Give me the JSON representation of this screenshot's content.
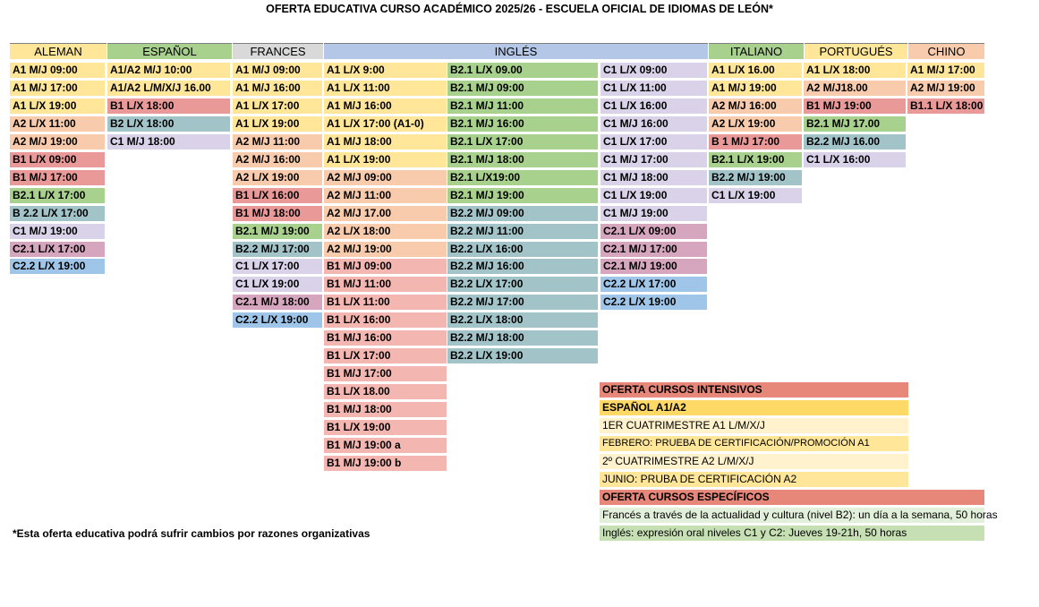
{
  "title": "OFERTA EDUCATIVA CURSO ACADÉMICO 2025/26 - ESCUELA OFICIAL DE IDIOMAS DE LEÓN*",
  "colors": {
    "A1": "#ffe699",
    "A2": "#f8cbad",
    "B1": "#f4b183",
    "B1_red": "#ea9999",
    "B2": "#a9d18e",
    "B2_2": "#a2c4c9",
    "C1": "#d9d2e9",
    "C2_1": "#d5a6bd",
    "C2_2": "#9fc5e8"
  },
  "headers": [
    {
      "label": "ALEMAN",
      "bg": "#ffe699"
    },
    {
      "label": "ESPAÑOL",
      "bg": "#a9d18e"
    },
    {
      "label": "FRANCES",
      "bg": "#d9d9d9"
    },
    {
      "label": "INGLÉS",
      "bg": "#b4c7e7"
    },
    {
      "label": "ITALIANO",
      "bg": "#a9d18e"
    },
    {
      "label": "PORTUGUÉS",
      "bg": "#ffe699"
    },
    {
      "label": "CHINO",
      "bg": "#f8cbad"
    }
  ],
  "columns": {
    "aleman": [
      {
        "text": "A1 M/J 09:00",
        "bg": "#ffe699"
      },
      {
        "text": "A1 M/J 17:00",
        "bg": "#ffe699"
      },
      {
        "text": "A1 L/X 19:00",
        "bg": "#ffe699"
      },
      {
        "text": "A2 L/X 11:00",
        "bg": "#f8cbad"
      },
      {
        "text": "A2 M/J 19:00",
        "bg": "#f8cbad"
      },
      {
        "text": "B1 L/X 09:00",
        "bg": "#ea9999"
      },
      {
        "text": "B1 M/J 17:00",
        "bg": "#ea9999"
      },
      {
        "text": "B2.1 L/X 17:00",
        "bg": "#a9d18e"
      },
      {
        "text": "B 2.2 L/X 17:00",
        "bg": "#a2c4c9"
      },
      {
        "text": "C1 M/J 19:00",
        "bg": "#d9d2e9"
      },
      {
        "text": "C2.1 L/X 17:00",
        "bg": "#d5a6bd"
      },
      {
        "text": "C2.2 L/X 19:00",
        "bg": "#9fc5e8"
      }
    ],
    "espanol": [
      {
        "text": "A1/A2 M/J 10:00",
        "bg": "#ffe699"
      },
      {
        "text": "A1/A2  L/M/X/J 16.00",
        "bg": "#ffe699"
      },
      {
        "text": "B1 L/X 18:00",
        "bg": "#ea9999"
      },
      {
        "text": "B2 L/X 18:00",
        "bg": "#a2c4c9"
      },
      {
        "text": "C1 M/J 18:00",
        "bg": "#d9d2e9"
      }
    ],
    "frances": [
      {
        "text": "A1 M/J 09:00",
        "bg": "#ffe699"
      },
      {
        "text": "A1 M/J 16:00",
        "bg": "#ffe699"
      },
      {
        "text": "A1 L/X 17:00",
        "bg": "#ffe699"
      },
      {
        "text": "A1 L/X 19:00",
        "bg": "#ffe699"
      },
      {
        "text": "A2 M/J 11:00",
        "bg": "#f8cbad"
      },
      {
        "text": "A2 M/J 16:00",
        "bg": "#f8cbad"
      },
      {
        "text": "A2 L/X 19:00",
        "bg": "#f8cbad"
      },
      {
        "text": "B1 L/X 16:00",
        "bg": "#ea9999"
      },
      {
        "text": "B1 M/J 18:00",
        "bg": "#ea9999"
      },
      {
        "text": "B2.1 M/J 19:00",
        "bg": "#a9d18e"
      },
      {
        "text": "B2.2 M/J 17:00",
        "bg": "#a2c4c9"
      },
      {
        "text": "C1 L/X 17:00",
        "bg": "#d9d2e9"
      },
      {
        "text": " C1 L/X  19:00",
        "bg": "#d9d2e9"
      },
      {
        "text": "C2.1 M/J 18:00",
        "bg": "#d5a6bd"
      },
      {
        "text": "C2.2 L/X 19:00",
        "bg": "#9fc5e8"
      }
    ],
    "ingles_1": [
      {
        "text": "A1 L/X 9:00",
        "bg": "#ffe699"
      },
      {
        "text": "A1 L/X 11:00",
        "bg": "#ffe699"
      },
      {
        "text": "A1 M/J 16:00",
        "bg": "#ffe699"
      },
      {
        "text": "A1 L/X 17:00 (A1-0)",
        "bg": "#ffe699"
      },
      {
        "text": "A1 M/J 18:00",
        "bg": "#ffe699"
      },
      {
        "text": "A1 L/X 19:00",
        "bg": "#ffe699"
      },
      {
        "text": "A2 M/J 09:00",
        "bg": "#f8cbad"
      },
      {
        "text": "A2 M/J 11:00",
        "bg": "#f8cbad"
      },
      {
        "text": "A2 M/J 17.00",
        "bg": "#f8cbad"
      },
      {
        "text": "A2 L/X 18:00",
        "bg": "#f8cbad"
      },
      {
        "text": "A2 M/J 19:00",
        "bg": "#f8cbad"
      },
      {
        "text": "B1 M/J 09:00",
        "bg": "#f4b6b0"
      },
      {
        "text": "B1 M/J 11:00",
        "bg": "#f4b6b0"
      },
      {
        "text": "B1 L/X 11:00",
        "bg": "#f4b6b0"
      },
      {
        "text": "B1 L/X 16:00",
        "bg": "#f4b6b0"
      },
      {
        "text": "B1 M/J 16:00",
        "bg": "#f4b6b0"
      },
      {
        "text": "B1 L/X 17:00",
        "bg": "#f4b6b0"
      },
      {
        "text": "B1 M/J 17:00",
        "bg": "#f4b6b0"
      },
      {
        "text": "B1 L/X 18.00",
        "bg": "#f4b6b0"
      },
      {
        "text": "B1 M/J 18:00",
        "bg": "#f4b6b0"
      },
      {
        "text": "B1 L/X 19:00",
        "bg": "#f4b6b0"
      },
      {
        "text": "B1 M/J 19:00 a",
        "bg": "#f4b6b0"
      },
      {
        "text": "B1 M/J 19:00 b",
        "bg": "#f4b6b0"
      }
    ],
    "ingles_2": [
      {
        "text": "B2.1 L/X 09.00",
        "bg": "#a9d18e"
      },
      {
        "text": "B2.1 M/J 09:00",
        "bg": "#a9d18e"
      },
      {
        "text": "B2.1 M/J 11:00",
        "bg": "#a9d18e"
      },
      {
        "text": "B2.1 M/J 16:00",
        "bg": "#a9d18e"
      },
      {
        "text": "B2.1 L/X 17:00",
        "bg": "#a9d18e"
      },
      {
        "text": "B2.1 M/J 18:00",
        "bg": "#a9d18e"
      },
      {
        "text": "B2.1 L/X19:00",
        "bg": "#a9d18e"
      },
      {
        "text": "B2.1 M/J 19:00",
        "bg": "#a9d18e"
      },
      {
        "text": "B2.2 M/J 09:00",
        "bg": "#a2c4c9"
      },
      {
        "text": "B2.2 M/J 11:00",
        "bg": "#a2c4c9"
      },
      {
        "text": "B2.2 L/X 16:00",
        "bg": "#a2c4c9"
      },
      {
        "text": "B2.2 M/J 16:00",
        "bg": "#a2c4c9"
      },
      {
        "text": "B2.2 L/X 17:00",
        "bg": "#a2c4c9"
      },
      {
        "text": "B2.2 M/J 17:00",
        "bg": "#a2c4c9"
      },
      {
        "text": "B2.2 L/X 18:00",
        "bg": "#a2c4c9"
      },
      {
        "text": "B2.2 M/J 18:00",
        "bg": "#a2c4c9"
      },
      {
        "text": "B2.2 L/X 19:00",
        "bg": "#a2c4c9"
      }
    ],
    "ingles_3": [
      {
        "text": "C1 L/X 09:00",
        "bg": "#d9d2e9"
      },
      {
        "text": "C1 L/X 11:00",
        "bg": "#d9d2e9"
      },
      {
        "text": "C1 L/X 16:00",
        "bg": "#d9d2e9"
      },
      {
        "text": "C1 M/J 16:00",
        "bg": "#d9d2e9"
      },
      {
        "text": "C1 L/X 17:00",
        "bg": "#d9d2e9"
      },
      {
        "text": "C1 M/J 17:00",
        "bg": "#d9d2e9"
      },
      {
        "text": "C1 M/J 18:00",
        "bg": "#d9d2e9"
      },
      {
        "text": "C1 L/X 19:00",
        "bg": "#d9d2e9"
      },
      {
        "text": "C1 M/J 19:00",
        "bg": "#d9d2e9"
      },
      {
        "text": "C2.1 L/X 09:00",
        "bg": "#d5a6bd"
      },
      {
        "text": "C2.1 M/J 17:00",
        "bg": "#d5a6bd"
      },
      {
        "text": "C2.1 M/J 19:00",
        "bg": "#d5a6bd"
      },
      {
        "text": "C2.2 L/X 17:00",
        "bg": "#9fc5e8"
      },
      {
        "text": "C2.2 L/X 19:00",
        "bg": "#9fc5e8"
      }
    ],
    "italiano": [
      {
        "text": "A1 L/X 16.00",
        "bg": "#ffe699"
      },
      {
        "text": "A1 M/J 19:00",
        "bg": "#ffe699"
      },
      {
        "text": "A2 M/J 16:00",
        "bg": "#f8cbad"
      },
      {
        "text": "A2 L/X 19:00",
        "bg": "#f8cbad"
      },
      {
        "text": "B 1 M/J 17:00",
        "bg": "#ea9999"
      },
      {
        "text": "B2.1 L/X 19:00",
        "bg": "#a9d18e"
      },
      {
        "text": "B2.2 M/J 19:00",
        "bg": "#a2c4c9"
      },
      {
        "text": "C1 L/X 19:00",
        "bg": "#d9d2e9"
      }
    ],
    "portugues": [
      {
        "text": "A1 L/X 18:00",
        "bg": "#ffe699"
      },
      {
        "text": "A2 M/J18.00",
        "bg": "#f8cbad"
      },
      {
        "text": "B1 M/J 19:00",
        "bg": "#ea9999"
      },
      {
        "text": "B2.1 M/J 17.00",
        "bg": "#a9d18e"
      },
      {
        "text": "B2.2  M/J 16.00",
        "bg": "#a2c4c9"
      },
      {
        "text": "C1 L/X 16:00",
        "bg": "#d9d2e9"
      }
    ],
    "chino": [
      {
        "text": "A1 M/J 17:00",
        "bg": "#ffe699"
      },
      {
        "text": " A2 M/J 19:00",
        "bg": "#f8cbad"
      },
      {
        "text": "B1.1 L/X 18:00",
        "bg": "#ea9999"
      }
    ]
  },
  "intensivos": {
    "header": "OFERTA CURSOS INTENSIVOS",
    "sub": "ESPAÑOL A1/A2",
    "rows": [
      {
        "text": "1ER CUATRIMESTRE A1 L/M/X/J",
        "bg": "#fff2cc"
      },
      {
        "text": "FEBRERO: PRUEBA DE CERTIFICACIÓN/PROMOCIÓN A1",
        "bg": "#ffe699"
      },
      {
        "text": "2º CUATRIMESTRE A2 L/M/X/J",
        "bg": "#fff2cc"
      },
      {
        "text": "JUNIO: PRUBA DE CERTIFICACIÓN A2",
        "bg": "#ffe699"
      }
    ]
  },
  "especificos": {
    "header": "OFERTA CURSOS ESPECÍFICOS",
    "rows": [
      {
        "text": "Francés a través de la actualidad y cultura (nivel B2): un día a la semana, 50 horas",
        "bg": "#e2efda"
      },
      {
        "text": "Inglés: expresión oral niveles C1 y C2: Jueves 19-21h, 50 horas",
        "bg": "#c6e0b4"
      }
    ]
  },
  "footnote": "*Esta oferta educativa podrá sufrir cambios por razones organizativas"
}
